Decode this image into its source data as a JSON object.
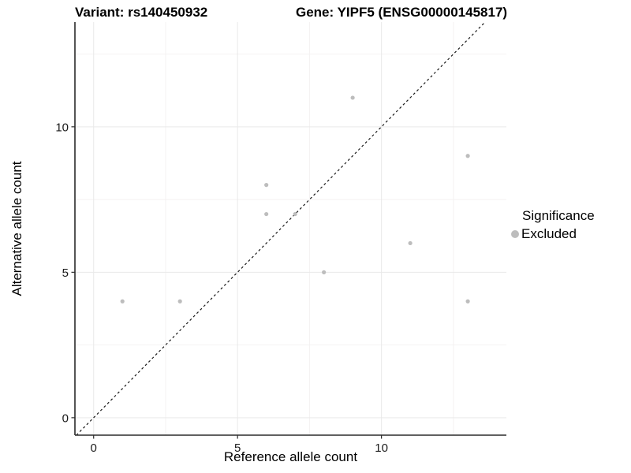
{
  "chart_data": {
    "type": "scatter",
    "title_left": "Variant: rs140450932",
    "title_right": "Gene: YIPF5 (ENSG00000145817)",
    "xlabel": "Reference allele count",
    "ylabel": "Alternative allele count",
    "xlim": [
      -0.65,
      14.34
    ],
    "ylim": [
      -0.6,
      13.6
    ],
    "x_ticks": [
      0,
      5,
      10
    ],
    "y_ticks": [
      0,
      5,
      10
    ],
    "x_minor_gridlines": [
      2.5,
      7.5,
      12.5
    ],
    "y_minor_gridlines": [
      2.5,
      7.5,
      12.5
    ],
    "grid": "major+minor",
    "identity_line": {
      "slope": 1,
      "intercept": 0,
      "style": "dashed"
    },
    "series": [
      {
        "name": "Excluded",
        "color": "#bdbdbd",
        "points": [
          [
            1,
            4
          ],
          [
            3,
            4
          ],
          [
            6,
            7
          ],
          [
            6,
            8
          ],
          [
            7,
            7
          ],
          [
            8,
            5
          ],
          [
            9,
            11
          ],
          [
            11,
            6
          ],
          [
            13,
            4
          ],
          [
            13,
            9
          ]
        ]
      }
    ],
    "legend": {
      "title": "Significance",
      "position": "right",
      "items": [
        {
          "label": "Excluded",
          "color": "#bdbdbd"
        }
      ]
    }
  },
  "colors": {
    "point": "#bdbdbd",
    "axis": "#2b2b2b",
    "grid_major": "#e9e9e9",
    "grid_minor": "#f4f2f2",
    "text": "#1a1a1a"
  }
}
